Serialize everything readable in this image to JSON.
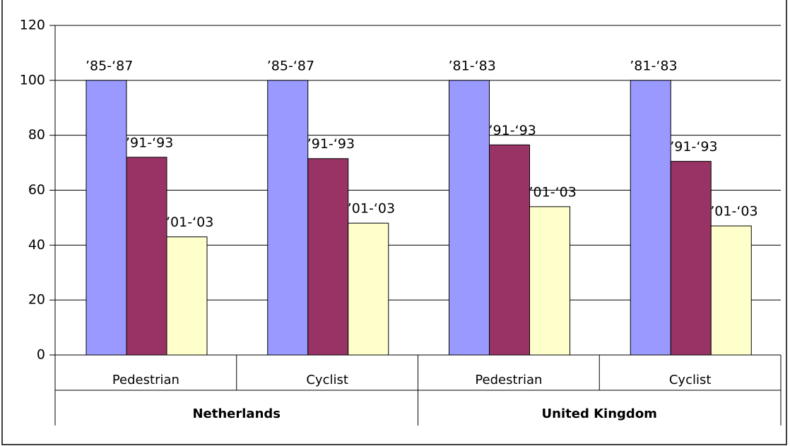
{
  "chart_data": {
    "type": "bar",
    "categories": [
      "Pedestrian",
      "Cyclist",
      "Pedestrian",
      "Cyclist"
    ],
    "groups": [
      {
        "name": "Netherlands",
        "size": 2
      },
      {
        "name": "United Kingdom",
        "size": 2
      }
    ],
    "series": [
      {
        "color": "#9999ff",
        "values": [
          100,
          100,
          100,
          100
        ],
        "value_labels": [
          "’85-‘87",
          "’85-‘87",
          "’81-‘83",
          "’81-‘83"
        ]
      },
      {
        "color": "#993366",
        "values": [
          72,
          71.5,
          76.5,
          70.5
        ],
        "value_labels": [
          "’91-‘93",
          "’91-‘93",
          "’91-‘93",
          "’91-‘93"
        ]
      },
      {
        "color": "#ffffcc",
        "values": [
          43,
          48,
          54,
          47
        ],
        "value_labels": [
          "’01-‘03",
          "’01-‘03",
          "’01-‘03",
          "’01-‘03"
        ]
      }
    ],
    "ylim": [
      0,
      120
    ],
    "yticks": [
      0,
      20,
      40,
      60,
      80,
      100,
      120
    ],
    "grid": true
  }
}
